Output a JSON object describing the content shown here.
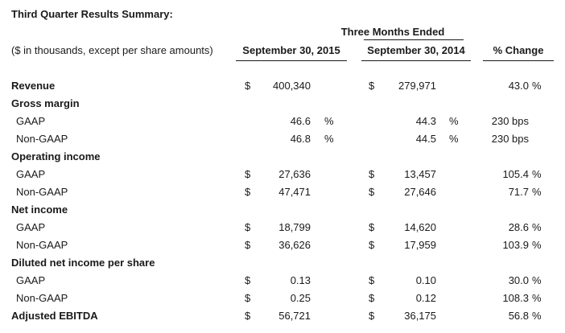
{
  "title": "Third Quarter Results Summary:",
  "period_header": "Three Months Ended",
  "amounts_note": "($ in thousands, except per share amounts)",
  "columns": [
    "September 30, 2015",
    "September 30, 2014",
    "% Change"
  ],
  "rows": [
    {
      "label": "Revenue",
      "style": "bold",
      "c1": "$",
      "v1": "400,340",
      "s1": "",
      "c2": "$",
      "v2": "279,971",
      "s2": "",
      "chg": "43.0",
      "chg_unit": "%"
    },
    {
      "label": "Gross margin",
      "style": "bold",
      "c1": "",
      "v1": "",
      "s1": "",
      "c2": "",
      "v2": "",
      "s2": "",
      "chg": "",
      "chg_unit": ""
    },
    {
      "label": "GAAP",
      "style": "sub",
      "c1": "",
      "v1": "46.6",
      "s1": "%",
      "c2": "",
      "v2": "44.3",
      "s2": "%",
      "chg": "230 bps",
      "chg_unit": ""
    },
    {
      "label": "Non-GAAP",
      "style": "sub",
      "c1": "",
      "v1": "46.8",
      "s1": "%",
      "c2": "",
      "v2": "44.5",
      "s2": "%",
      "chg": "230 bps",
      "chg_unit": ""
    },
    {
      "label": "Operating income",
      "style": "bold",
      "c1": "",
      "v1": "",
      "s1": "",
      "c2": "",
      "v2": "",
      "s2": "",
      "chg": "",
      "chg_unit": ""
    },
    {
      "label": "GAAP",
      "style": "sub",
      "c1": "$",
      "v1": "27,636",
      "s1": "",
      "c2": "$",
      "v2": "13,457",
      "s2": "",
      "chg": "105.4",
      "chg_unit": "%"
    },
    {
      "label": "Non-GAAP",
      "style": "sub",
      "c1": "$",
      "v1": "47,471",
      "s1": "",
      "c2": "$",
      "v2": "27,646",
      "s2": "",
      "chg": "71.7",
      "chg_unit": "%"
    },
    {
      "label": "Net income",
      "style": "bold",
      "c1": "",
      "v1": "",
      "s1": "",
      "c2": "",
      "v2": "",
      "s2": "",
      "chg": "",
      "chg_unit": ""
    },
    {
      "label": "GAAP",
      "style": "sub",
      "c1": "$",
      "v1": "18,799",
      "s1": "",
      "c2": "$",
      "v2": "14,620",
      "s2": "",
      "chg": "28.6",
      "chg_unit": "%"
    },
    {
      "label": "Non-GAAP",
      "style": "sub",
      "c1": "$",
      "v1": "36,626",
      "s1": "",
      "c2": "$",
      "v2": "17,959",
      "s2": "",
      "chg": "103.9",
      "chg_unit": "%"
    },
    {
      "label": "Diluted net income per share",
      "style": "bold",
      "c1": "",
      "v1": "",
      "s1": "",
      "c2": "",
      "v2": "",
      "s2": "",
      "chg": "",
      "chg_unit": ""
    },
    {
      "label": "GAAP",
      "style": "sub",
      "c1": "$",
      "v1": "0.13",
      "s1": "",
      "c2": "$",
      "v2": "0.10",
      "s2": "",
      "chg": "30.0",
      "chg_unit": "%"
    },
    {
      "label": "Non-GAAP",
      "style": "sub",
      "c1": "$",
      "v1": "0.25",
      "s1": "",
      "c2": "$",
      "v2": "0.12",
      "s2": "",
      "chg": "108.3",
      "chg_unit": "%"
    },
    {
      "label": "Adjusted EBITDA",
      "style": "bold",
      "c1": "$",
      "v1": "56,721",
      "s1": "",
      "c2": "$",
      "v2": "36,175",
      "s2": "",
      "chg": "56.8",
      "chg_unit": "%"
    }
  ]
}
